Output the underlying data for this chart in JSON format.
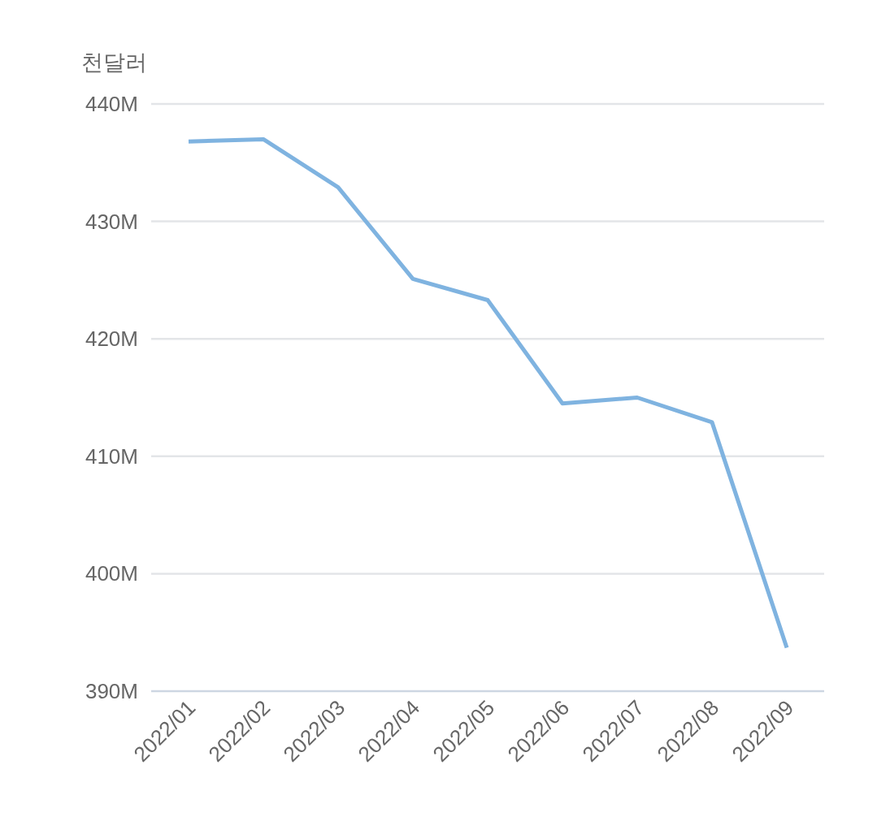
{
  "chart_data": {
    "type": "line",
    "ylabel": "천달러",
    "categories": [
      "2022/01",
      "2022/02",
      "2022/03",
      "2022/04",
      "2022/05",
      "2022/06",
      "2022/07",
      "2022/08",
      "2022/09"
    ],
    "series": [
      {
        "color": "#7fb3e0",
        "values": [
          436800000,
          437000000,
          432900000,
          425100000,
          423300000,
          414500000,
          415000000,
          412900000,
          393700000
        ]
      }
    ],
    "ylim": [
      390000000,
      440000000
    ],
    "yticks": [
      {
        "value": 390000000,
        "label": "390M"
      },
      {
        "value": 400000000,
        "label": "400M"
      },
      {
        "value": 410000000,
        "label": "410M"
      },
      {
        "value": 420000000,
        "label": "420M"
      },
      {
        "value": 430000000,
        "label": "430M"
      },
      {
        "value": 440000000,
        "label": "440M"
      }
    ],
    "grid": "y"
  }
}
